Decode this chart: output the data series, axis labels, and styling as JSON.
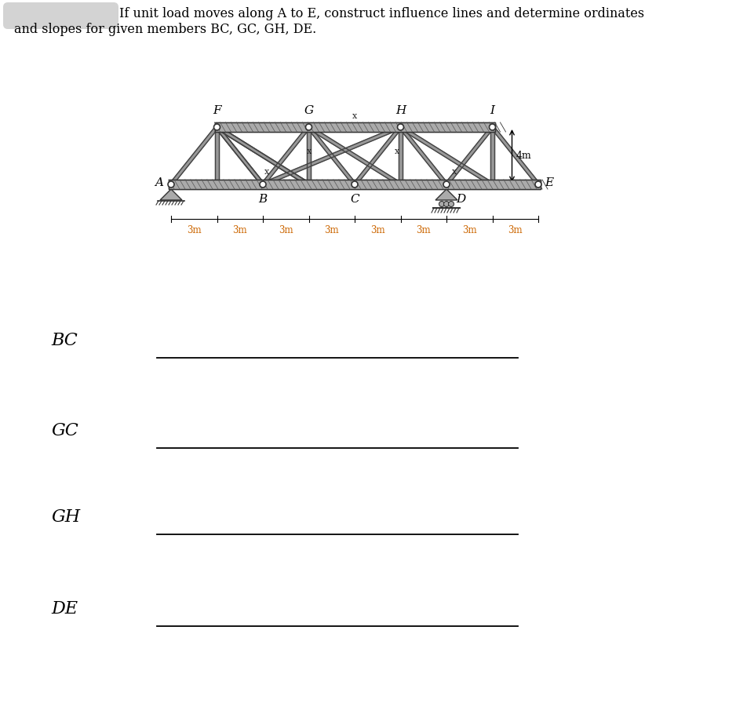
{
  "title_line1": "If unit load moves along A to E, construct influence lines and determine ordinates",
  "title_line2": "and slopes for given members BC, GC, GH, DE.",
  "members": [
    "BC",
    "GC",
    "GH",
    "DE"
  ],
  "bg_color": "#ffffff",
  "text_color": "#000000",
  "dim_color": "#cc6600",
  "figsize": [
    9.38,
    9.24
  ],
  "dpi": 100,
  "truss_gray": "#888888",
  "truss_dark": "#444444",
  "chord_fill": "#aaaaaa",
  "node_fill": "#ffffff",
  "node_edge": "#333333"
}
